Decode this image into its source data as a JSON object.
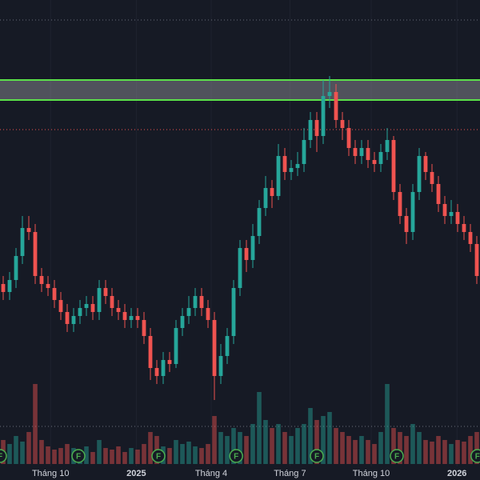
{
  "chart_data": {
    "type": "candlestick",
    "xlim": [
      -0.5,
      74.5
    ],
    "xticks": [
      {
        "value": 7.4,
        "label": "Tháng 10"
      },
      {
        "value": 20.8,
        "label": "2025"
      },
      {
        "value": 32.5,
        "label": "Tháng 4"
      },
      {
        "value": 44.8,
        "label": "Tháng 7"
      },
      {
        "value": 57.5,
        "label": "Tháng 10"
      },
      {
        "value": 70.9,
        "label": "2026"
      }
    ],
    "bold_ticks": [
      "2025",
      "2026"
    ],
    "ylim": [
      0,
      60
    ],
    "y2lim": [
      0,
      100
    ],
    "up_color": "#26a69a",
    "down_color": "#ef5350",
    "open": [
      24.5,
      23.5,
      25,
      28,
      31.5,
      31,
      25.5,
      24.5,
      24,
      22.5,
      21,
      19.5,
      20.5,
      21.5,
      22,
      21,
      24,
      23,
      21.5,
      21,
      20,
      20.5,
      20,
      18,
      14,
      13,
      15,
      14.5,
      19,
      20.5,
      21.5,
      23,
      21.5,
      20,
      13,
      15.5,
      18,
      24,
      29,
      27.5,
      30.5,
      34,
      36.5,
      35.5,
      40.5,
      38.5,
      39,
      39.5,
      42.5,
      45,
      43,
      48,
      48.5,
      45,
      44,
      41.5,
      40.5,
      41.5,
      40,
      39.5,
      41,
      42.5,
      36,
      33,
      31,
      36,
      40.5,
      38.5,
      37,
      34.5,
      33,
      33.5,
      32,
      31,
      29.5
    ],
    "high": [
      25.5,
      26,
      29,
      33,
      33,
      32,
      26.5,
      25.5,
      25,
      23.5,
      22,
      21.5,
      22.5,
      23,
      23,
      25,
      25,
      24,
      22.5,
      22,
      21.5,
      21.5,
      21,
      19,
      15,
      16,
      16,
      20,
      21.5,
      23,
      24,
      24,
      22.5,
      21,
      17,
      19,
      25,
      30,
      30,
      32,
      35,
      38,
      37.5,
      42,
      41.5,
      40,
      41,
      44,
      46,
      46,
      50,
      50.5,
      49.5,
      46,
      45,
      42.5,
      42.5,
      42.5,
      41,
      42,
      44,
      43,
      37,
      34,
      37,
      41.5,
      41,
      39.5,
      38,
      35.5,
      35,
      34.5,
      33,
      32,
      30.5
    ],
    "low": [
      22.5,
      22.5,
      24,
      27,
      30,
      24.5,
      23.5,
      23,
      21.5,
      20,
      18.5,
      18.5,
      19.5,
      20.5,
      20,
      20,
      22,
      20.5,
      20,
      19,
      19,
      19,
      17,
      12.5,
      12,
      12,
      13.5,
      14,
      18,
      19.5,
      20.5,
      20.5,
      19,
      10,
      12,
      14.5,
      17,
      23,
      26,
      26.5,
      29.5,
      33,
      34,
      35,
      37.5,
      37.5,
      38,
      38.5,
      41.5,
      41,
      42,
      46.5,
      44,
      42.5,
      40.5,
      39.5,
      39.5,
      39,
      38.5,
      38.5,
      40,
      35,
      32,
      29.5,
      30,
      35,
      37.5,
      36,
      33.5,
      32,
      32,
      31,
      30,
      28.5,
      24.5
    ],
    "close": [
      23.5,
      25,
      28,
      31.5,
      31,
      25.5,
      24.5,
      24,
      22.5,
      21,
      19.5,
      20.5,
      21.5,
      22,
      21,
      24,
      23,
      21.5,
      21,
      20,
      20.5,
      20,
      18,
      14,
      13,
      15,
      14.5,
      19,
      20.5,
      21.5,
      23,
      21.5,
      20,
      13,
      15.5,
      18,
      24,
      29,
      27.5,
      30.5,
      34,
      36.5,
      35.5,
      40.5,
      38.5,
      39,
      39.5,
      42.5,
      45,
      43,
      48,
      48.5,
      45,
      44,
      41.5,
      40.5,
      41.5,
      40,
      39.5,
      41,
      42.5,
      36,
      33,
      31,
      36,
      40.5,
      38.5,
      37,
      34.5,
      33,
      33.5,
      32,
      31,
      29.5,
      25.5
    ],
    "volume": [
      30,
      25,
      35,
      28,
      40,
      100,
      30,
      22,
      18,
      20,
      25,
      20,
      18,
      22,
      15,
      30,
      20,
      18,
      22,
      15,
      20,
      18,
      25,
      40,
      35,
      22,
      20,
      30,
      25,
      28,
      22,
      20,
      25,
      60,
      40,
      35,
      45,
      40,
      35,
      50,
      90,
      55,
      45,
      50,
      40,
      35,
      45,
      50,
      70,
      55,
      60,
      65,
      45,
      40,
      35,
      30,
      35,
      30,
      25,
      40,
      100,
      45,
      40,
      35,
      50,
      40,
      30,
      28,
      35,
      30,
      25,
      30,
      28,
      35,
      40
    ],
    "zone": [
      47.5,
      50
    ],
    "zone_color": "#5be04a",
    "levels": [
      {
        "value": 57.5,
        "color": "#6b6f7a"
      },
      {
        "value": 43.8,
        "color": "#ef5350"
      }
    ],
    "y2_levels": [
      47
    ],
    "events": [
      {
        "x": -0.5,
        "label": "F"
      },
      {
        "x": 11.75,
        "label": "F"
      },
      {
        "x": 24.25,
        "label": "F"
      },
      {
        "x": 36.4,
        "label": "F"
      },
      {
        "x": 49,
        "label": "F"
      },
      {
        "x": 61.5,
        "label": "F"
      },
      {
        "x": 74.1,
        "label": "F"
      }
    ],
    "event_color": "#4caf50"
  }
}
